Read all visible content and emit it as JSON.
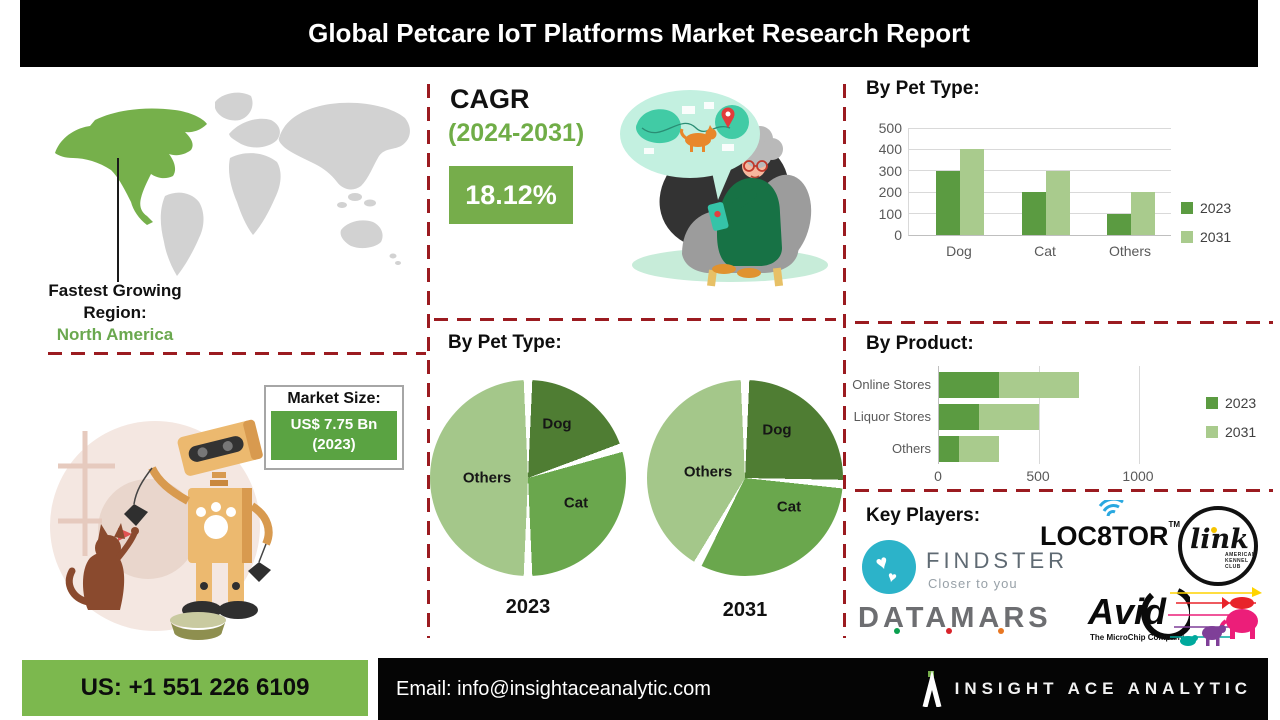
{
  "header": {
    "title": "Global Petcare IoT Platforms Market Research Report"
  },
  "left": {
    "region_label_line1": "Fastest Growing",
    "region_label_line2": "Region:",
    "region_value": "North America",
    "market_size": {
      "title": "Market Size:",
      "value": "US$ 7.75 Bn",
      "year": "(2023)"
    }
  },
  "mid": {
    "cagr_label": "CAGR",
    "cagr_period": "(2024-2031)",
    "cagr_value": "18.12%",
    "pie_section_title": "By Pet Type:"
  },
  "key_players": {
    "title": "Key Players:",
    "findster": {
      "name": "FINDSTER",
      "tagline": "Closer to you"
    },
    "loc8tor": {
      "part1": "LOC",
      "part2": "8",
      "part3": "TOR",
      "tm": "TM"
    },
    "link": {
      "name": "link",
      "org_line1": "AMERICAN",
      "org_line2": "KENNEL",
      "org_line3": "CLUB"
    },
    "datamars": {
      "name": "DATAMARS"
    },
    "avid": {
      "name": "Avid",
      "tagline": "The MicroChip Company"
    }
  },
  "footer": {
    "phone": "US: +1 551 226 6109",
    "email_label": "Email:",
    "email": "info@insightaceanalytic.com",
    "brand": "INSIGHT ACE ANALYTIC"
  },
  "colors": {
    "series_2023": "#5b9b41",
    "series_2031": "#a9cb8d",
    "pie_dog": "#4f7d33",
    "pie_cat": "#6aa74d",
    "pie_others": "#a4c78a",
    "accent_green": "#76ad4b",
    "dashed_divider": "#9b1b20",
    "footer_green": "#7cb84e",
    "map_highlight": "#76b04b"
  },
  "chart_data": [
    {
      "type": "bar",
      "title": "By Pet Type:",
      "categories": [
        "Dog",
        "Cat",
        "Others"
      ],
      "series": [
        {
          "name": "2023",
          "values": [
            300,
            200,
            100
          ],
          "color": "#5b9b41"
        },
        {
          "name": "2031",
          "values": [
            400,
            300,
            200
          ],
          "color": "#a9cb8d"
        }
      ],
      "ylim": [
        0,
        500
      ],
      "yticks": [
        0,
        100,
        200,
        300,
        400,
        500
      ],
      "grid": true,
      "legend_position": "right"
    },
    {
      "type": "pie",
      "title": "By Pet Type:",
      "pies": [
        {
          "label": "2023",
          "slices": [
            {
              "name": "Dog",
              "value": 20,
              "color": "#4f7d33"
            },
            {
              "name": "Cat",
              "value": 30,
              "color": "#6aa74d"
            },
            {
              "name": "Others",
              "value": 50,
              "color": "#a4c78a"
            }
          ]
        },
        {
          "label": "2031",
          "slices": [
            {
              "name": "Dog",
              "value": 26,
              "color": "#4f7d33"
            },
            {
              "name": "Cat",
              "value": 32,
              "color": "#6aa74d"
            },
            {
              "name": "Others",
              "value": 42,
              "color": "#a4c78a"
            }
          ]
        }
      ]
    },
    {
      "type": "bar",
      "orientation": "horizontal",
      "stacked": true,
      "title": "By Product:",
      "categories": [
        "Online Stores",
        "Liquor Stores",
        "Others"
      ],
      "series": [
        {
          "name": "2023",
          "values": [
            300,
            200,
            100
          ],
          "color": "#5b9b41"
        },
        {
          "name": "2031",
          "values": [
            400,
            300,
            200
          ],
          "color": "#a9cb8d"
        }
      ],
      "xlim": [
        0,
        1350
      ],
      "xticks": [
        0,
        500,
        1000
      ],
      "legend_position": "right"
    }
  ]
}
